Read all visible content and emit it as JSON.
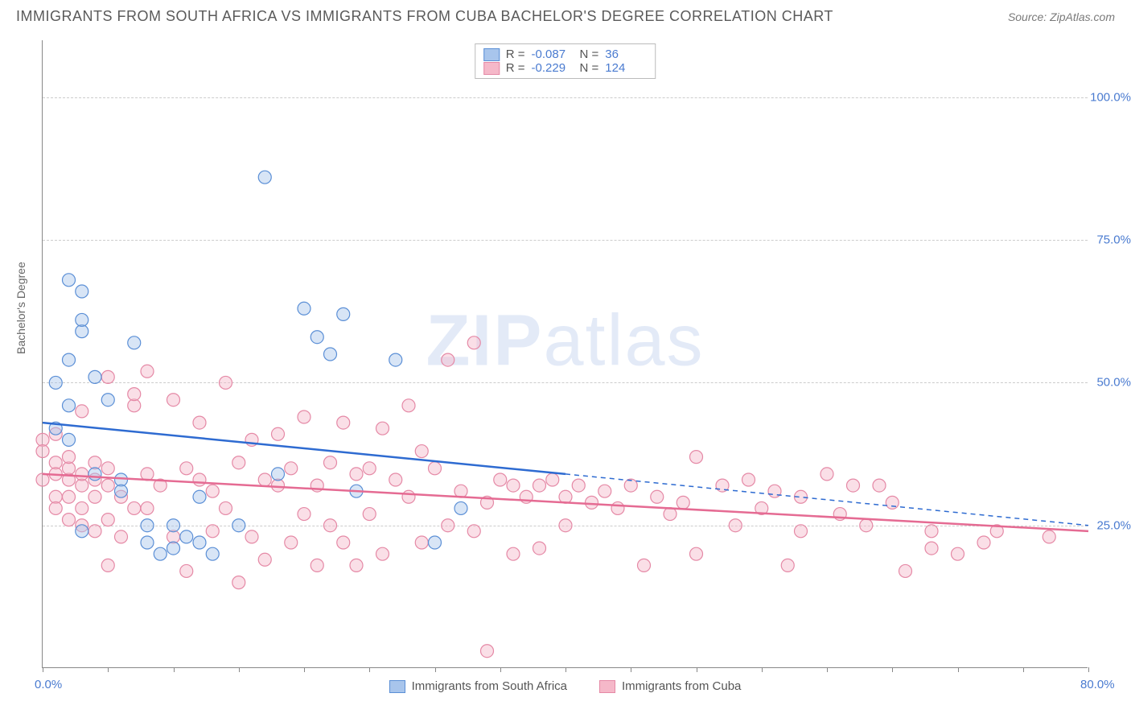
{
  "header": {
    "title": "IMMIGRANTS FROM SOUTH AFRICA VS IMMIGRANTS FROM CUBA BACHELOR'S DEGREE CORRELATION CHART",
    "source": "Source: ZipAtlas.com"
  },
  "watermark": {
    "zip": "ZIP",
    "atlas": "atlas"
  },
  "chart": {
    "type": "scatter",
    "ylabel": "Bachelor's Degree",
    "xlim": [
      0,
      80
    ],
    "ylim": [
      0,
      110
    ],
    "xticks": [
      0,
      80
    ],
    "xtick_labels": [
      "0.0%",
      "80.0%"
    ],
    "yticks": [
      25,
      50,
      75,
      100
    ],
    "ytick_labels": [
      "25.0%",
      "50.0%",
      "75.0%",
      "100.0%"
    ],
    "xtick_minor": [
      5,
      10,
      15,
      20,
      25,
      30,
      35,
      40,
      45,
      50,
      55,
      60,
      65,
      70,
      75
    ],
    "grid_color": "#cccccc",
    "axis_color": "#888888",
    "background_color": "#ffffff",
    "marker_radius": 8,
    "marker_opacity": 0.45,
    "line_width": 2.5,
    "series": [
      {
        "name": "Immigrants from South Africa",
        "color_fill": "#a8c5ec",
        "color_stroke": "#5b8fd6",
        "line_color": "#2e6bd1",
        "R": "-0.087",
        "N": "36",
        "trend": {
          "x1": 0,
          "y1": 43,
          "x2": 40,
          "y2": 34,
          "ext_x2": 80,
          "ext_y2": 25
        },
        "points": [
          [
            1,
            42
          ],
          [
            1,
            50
          ],
          [
            2,
            68
          ],
          [
            2,
            54
          ],
          [
            2,
            46
          ],
          [
            3,
            66
          ],
          [
            3,
            59
          ],
          [
            3,
            61
          ],
          [
            4,
            51
          ],
          [
            2,
            40
          ],
          [
            3,
            24
          ],
          [
            4,
            34
          ],
          [
            5,
            47
          ],
          [
            6,
            33
          ],
          [
            6,
            31
          ],
          [
            7,
            57
          ],
          [
            8,
            22
          ],
          [
            8,
            25
          ],
          [
            9,
            20
          ],
          [
            10,
            21
          ],
          [
            10,
            25
          ],
          [
            11,
            23
          ],
          [
            12,
            22
          ],
          [
            12,
            30
          ],
          [
            13,
            20
          ],
          [
            15,
            25
          ],
          [
            17,
            86
          ],
          [
            18,
            34
          ],
          [
            20,
            63
          ],
          [
            21,
            58
          ],
          [
            22,
            55
          ],
          [
            23,
            62
          ],
          [
            24,
            31
          ],
          [
            27,
            54
          ],
          [
            30,
            22
          ],
          [
            32,
            28
          ]
        ]
      },
      {
        "name": "Immigrants from Cuba",
        "color_fill": "#f5b8c9",
        "color_stroke": "#e589a6",
        "line_color": "#e56b93",
        "R": "-0.229",
        "N": "124",
        "trend": {
          "x1": 0,
          "y1": 34,
          "x2": 80,
          "y2": 24,
          "ext_x2": 80,
          "ext_y2": 24
        },
        "points": [
          [
            0,
            40
          ],
          [
            0,
            38
          ],
          [
            0,
            33
          ],
          [
            1,
            36
          ],
          [
            1,
            34
          ],
          [
            1,
            41
          ],
          [
            1,
            30
          ],
          [
            1,
            28
          ],
          [
            2,
            33
          ],
          [
            2,
            35
          ],
          [
            2,
            30
          ],
          [
            2,
            26
          ],
          [
            2,
            37
          ],
          [
            3,
            32
          ],
          [
            3,
            34
          ],
          [
            3,
            28
          ],
          [
            3,
            25
          ],
          [
            3,
            45
          ],
          [
            4,
            33
          ],
          [
            4,
            30
          ],
          [
            4,
            36
          ],
          [
            4,
            24
          ],
          [
            5,
            32
          ],
          [
            5,
            35
          ],
          [
            5,
            51
          ],
          [
            5,
            26
          ],
          [
            5,
            18
          ],
          [
            6,
            30
          ],
          [
            6,
            23
          ],
          [
            7,
            46
          ],
          [
            7,
            48
          ],
          [
            7,
            28
          ],
          [
            8,
            52
          ],
          [
            8,
            34
          ],
          [
            8,
            28
          ],
          [
            9,
            32
          ],
          [
            10,
            47
          ],
          [
            10,
            23
          ],
          [
            11,
            35
          ],
          [
            11,
            17
          ],
          [
            12,
            43
          ],
          [
            12,
            33
          ],
          [
            13,
            24
          ],
          [
            13,
            31
          ],
          [
            14,
            50
          ],
          [
            14,
            28
          ],
          [
            15,
            15
          ],
          [
            15,
            36
          ],
          [
            16,
            23
          ],
          [
            16,
            40
          ],
          [
            17,
            19
          ],
          [
            17,
            33
          ],
          [
            18,
            32
          ],
          [
            18,
            41
          ],
          [
            19,
            22
          ],
          [
            19,
            35
          ],
          [
            20,
            44
          ],
          [
            20,
            27
          ],
          [
            21,
            32
          ],
          [
            21,
            18
          ],
          [
            22,
            36
          ],
          [
            22,
            25
          ],
          [
            23,
            43
          ],
          [
            23,
            22
          ],
          [
            24,
            34
          ],
          [
            24,
            18
          ],
          [
            25,
            35
          ],
          [
            25,
            27
          ],
          [
            26,
            42
          ],
          [
            26,
            20
          ],
          [
            27,
            33
          ],
          [
            28,
            30
          ],
          [
            28,
            46
          ],
          [
            29,
            38
          ],
          [
            29,
            22
          ],
          [
            30,
            35
          ],
          [
            31,
            54
          ],
          [
            31,
            25
          ],
          [
            32,
            31
          ],
          [
            33,
            57
          ],
          [
            33,
            24
          ],
          [
            34,
            29
          ],
          [
            34,
            3
          ],
          [
            35,
            33
          ],
          [
            36,
            32
          ],
          [
            36,
            20
          ],
          [
            37,
            30
          ],
          [
            38,
            32
          ],
          [
            38,
            21
          ],
          [
            39,
            33
          ],
          [
            40,
            30
          ],
          [
            40,
            25
          ],
          [
            41,
            32
          ],
          [
            42,
            29
          ],
          [
            43,
            31
          ],
          [
            44,
            28
          ],
          [
            45,
            32
          ],
          [
            46,
            18
          ],
          [
            47,
            30
          ],
          [
            48,
            27
          ],
          [
            49,
            29
          ],
          [
            50,
            37
          ],
          [
            50,
            20
          ],
          [
            52,
            32
          ],
          [
            53,
            25
          ],
          [
            54,
            33
          ],
          [
            55,
            28
          ],
          [
            56,
            31
          ],
          [
            57,
            18
          ],
          [
            58,
            30
          ],
          [
            58,
            24
          ],
          [
            60,
            34
          ],
          [
            61,
            27
          ],
          [
            62,
            32
          ],
          [
            63,
            25
          ],
          [
            64,
            32
          ],
          [
            65,
            29
          ],
          [
            66,
            17
          ],
          [
            68,
            21
          ],
          [
            68,
            24
          ],
          [
            70,
            20
          ],
          [
            72,
            22
          ],
          [
            73,
            24
          ],
          [
            77,
            23
          ]
        ]
      }
    ],
    "bottom_legend": [
      {
        "label": "Immigrants from South Africa",
        "fill": "#a8c5ec",
        "stroke": "#5b8fd6"
      },
      {
        "label": "Immigrants from Cuba",
        "fill": "#f5b8c9",
        "stroke": "#e589a6"
      }
    ]
  }
}
